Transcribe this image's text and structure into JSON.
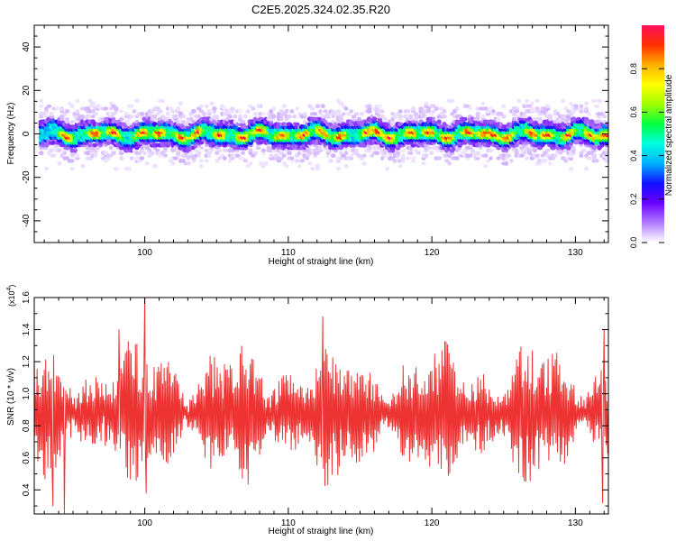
{
  "title": "C2E5.2025.324.02.35.R20",
  "chart_data": [
    {
      "type": "heatmap",
      "xlabel": "Height of straight line (km)",
      "ylabel": "Frequency (Hz)",
      "xlim": [
        92.3,
        132.3
      ],
      "ylim": [
        -50,
        50
      ],
      "xticks": [
        100,
        110,
        120,
        130
      ],
      "yticks": [
        -40,
        -20,
        0,
        20,
        40
      ],
      "colorbar": {
        "label": "Normalized spectral amplitude",
        "range": [
          0,
          1
        ],
        "ticks": [
          "0.0",
          "0.2",
          "0.4",
          "0.6",
          "0.8"
        ],
        "colors": [
          "#ffffff",
          "#b07cff",
          "#6a00ff",
          "#1010ff",
          "#00b0ff",
          "#00ffe0",
          "#00ff40",
          "#a0ff00",
          "#ffff00",
          "#ffb000",
          "#ff3000",
          "#ff1060"
        ]
      },
      "band_center_hz": 0,
      "band_halfwidth_hz": [
        3,
        4,
        6,
        12
      ],
      "peak_heights_km": [
        94.5,
        96.5,
        97.8,
        99.8,
        101.0,
        102.5,
        103.6,
        105.2,
        106.8,
        108.0,
        109.5,
        111.0,
        112.4,
        113.6,
        115.5,
        116.2,
        117.0,
        118.5,
        119.8,
        121.0,
        122.5,
        123.6,
        124.2,
        125.2,
        127.0,
        128.0,
        129.5,
        131.0,
        132.0
      ]
    },
    {
      "type": "line",
      "xlabel": "Height of straight line (km)",
      "ylabel": "SNR (10 * v/v)",
      "yscale_label": "(x10",
      "yscale_exp": "4",
      "yscale_close": ")",
      "xlim": [
        92.3,
        132.3
      ],
      "ylim": [
        0.25,
        1.6
      ],
      "xticks": [
        100,
        110,
        120,
        130
      ],
      "yticks": [
        "0.4",
        "0.6",
        "0.8",
        "1.0",
        "1.2",
        "1.4",
        "1.6"
      ],
      "series": [
        {
          "color": "#ee3333",
          "x_start": 92.3,
          "x_step": 0.05,
          "y_mean": 0.88,
          "y_typical_range": [
            0.55,
            1.2
          ],
          "notable_points": [
            [
              93.6,
              0.3
            ],
            [
              94.4,
              0.25
            ],
            [
              98.2,
              1.4
            ],
            [
              100.0,
              1.6
            ],
            [
              100.1,
              0.38
            ],
            [
              112.4,
              1.48
            ],
            [
              131.9,
              0.32
            ],
            [
              132.0,
              1.4
            ]
          ]
        }
      ]
    }
  ]
}
